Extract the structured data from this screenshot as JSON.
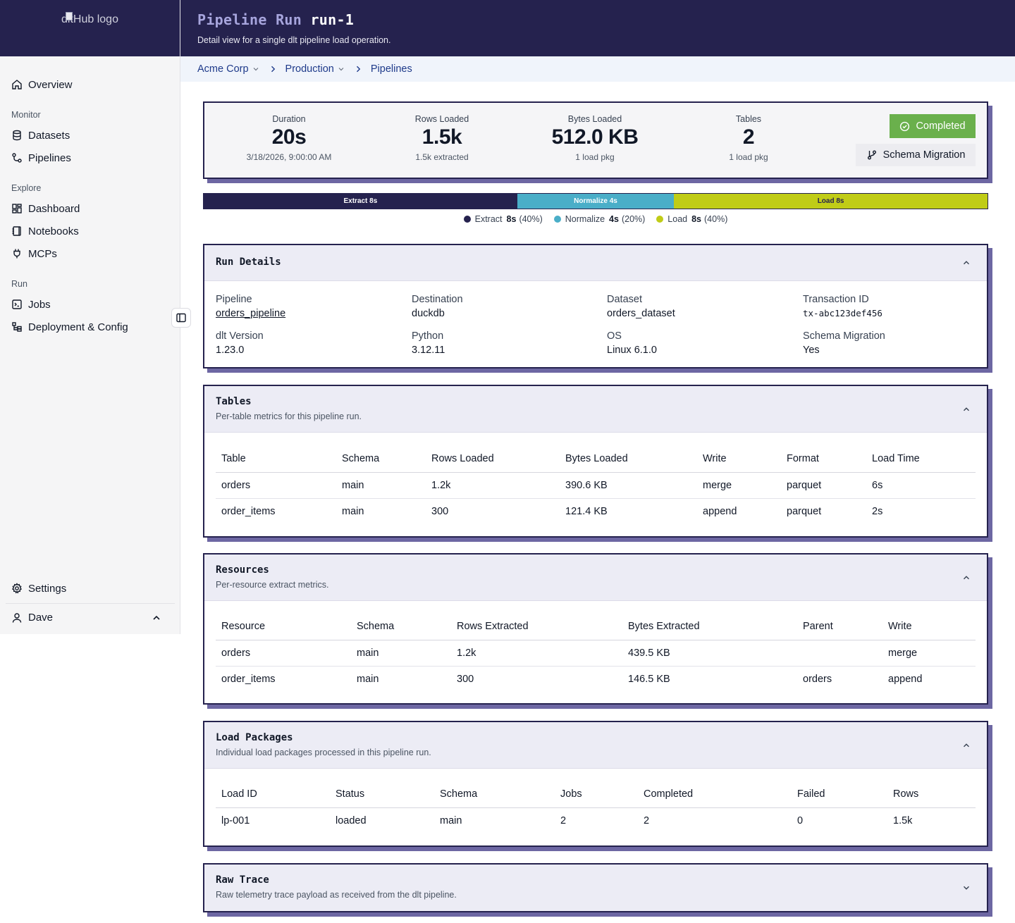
{
  "sidebar": {
    "logo_alt": "dltHub logo",
    "overview": "Overview",
    "sections": [
      {
        "title": "Monitor",
        "items": [
          "Datasets",
          "Pipelines"
        ]
      },
      {
        "title": "Explore",
        "items": [
          "Dashboard",
          "Notebooks",
          "MCPs"
        ]
      },
      {
        "title": "Run",
        "items": [
          "Jobs",
          "Deployment & Config"
        ]
      }
    ],
    "settings": "Settings",
    "user": "Dave"
  },
  "header": {
    "title_prefix": "Pipeline Run",
    "title_run": "run-1",
    "subtitle": "Detail view for a single dlt pipeline load operation."
  },
  "breadcrumb": [
    "Acme Corp",
    "Production",
    "Pipelines"
  ],
  "summary": {
    "duration": {
      "label": "Duration",
      "value": "20s",
      "sub": "3/18/2026, 9:00:00 AM"
    },
    "rows": {
      "label": "Rows Loaded",
      "value": "1.5k",
      "sub": "1.5k extracted"
    },
    "bytes": {
      "label": "Bytes Loaded",
      "value": "512.0 KB",
      "sub": "1 load pkg"
    },
    "tables": {
      "label": "Tables",
      "value": "2",
      "sub": "1 load pkg"
    },
    "status": "Completed",
    "schema_button": "Schema Migration"
  },
  "phases": {
    "extract": {
      "bar_label": "Extract 8s",
      "name": "Extract",
      "time": "8s",
      "pct": "(40%)",
      "fraction": 0.4,
      "color": "#25224e"
    },
    "normalize": {
      "bar_label": "Normalize 4s",
      "name": "Normalize",
      "time": "4s",
      "pct": "(20%)",
      "fraction": 0.2,
      "color": "#4aaec8"
    },
    "load": {
      "bar_label": "Load 8s",
      "name": "Load",
      "time": "8s",
      "pct": "(40%)",
      "fraction": 0.4,
      "color": "#c0cc17"
    }
  },
  "run_details": {
    "title": "Run Details",
    "pipeline_k": "Pipeline",
    "pipeline_v": "orders_pipeline",
    "destination_k": "Destination",
    "destination_v": "duckdb",
    "dataset_k": "Dataset",
    "dataset_v": "orders_dataset",
    "txn_k": "Transaction ID",
    "txn_v": "tx-abc123def456",
    "dlt_k": "dlt Version",
    "dlt_v": "1.23.0",
    "python_k": "Python",
    "python_v": "3.12.11",
    "os_k": "OS",
    "os_v": "Linux 6.1.0",
    "schema_k": "Schema Migration",
    "schema_v": "Yes"
  },
  "tables_section": {
    "title": "Tables",
    "desc": "Per-table metrics for this pipeline run.",
    "columns": [
      "Table",
      "Schema",
      "Rows Loaded",
      "Bytes Loaded",
      "Write",
      "Format",
      "Load Time"
    ],
    "rows": [
      [
        "orders",
        "main",
        "1.2k",
        "390.6 KB",
        "merge",
        "parquet",
        "6s"
      ],
      [
        "order_items",
        "main",
        "300",
        "121.4 KB",
        "append",
        "parquet",
        "2s"
      ]
    ]
  },
  "resources_section": {
    "title": "Resources",
    "desc": "Per-resource extract metrics.",
    "columns": [
      "Resource",
      "Schema",
      "Rows Extracted",
      "Bytes Extracted",
      "Parent",
      "Write"
    ],
    "rows": [
      [
        "orders",
        "main",
        "1.2k",
        "439.5 KB",
        "",
        "merge"
      ],
      [
        "order_items",
        "main",
        "300",
        "146.5 KB",
        "orders",
        "append"
      ]
    ]
  },
  "packages_section": {
    "title": "Load Packages",
    "desc": "Individual load packages processed in this pipeline run.",
    "columns": [
      "Load ID",
      "Status",
      "Schema",
      "Jobs",
      "Completed",
      "Failed",
      "Rows"
    ],
    "rows": [
      [
        "lp-001",
        "loaded",
        "main",
        "2",
        "2",
        "0",
        "1.5k"
      ]
    ]
  },
  "raw_trace": {
    "title": "Raw Trace",
    "desc": "Raw telemetry trace payload as received from the dlt pipeline."
  }
}
